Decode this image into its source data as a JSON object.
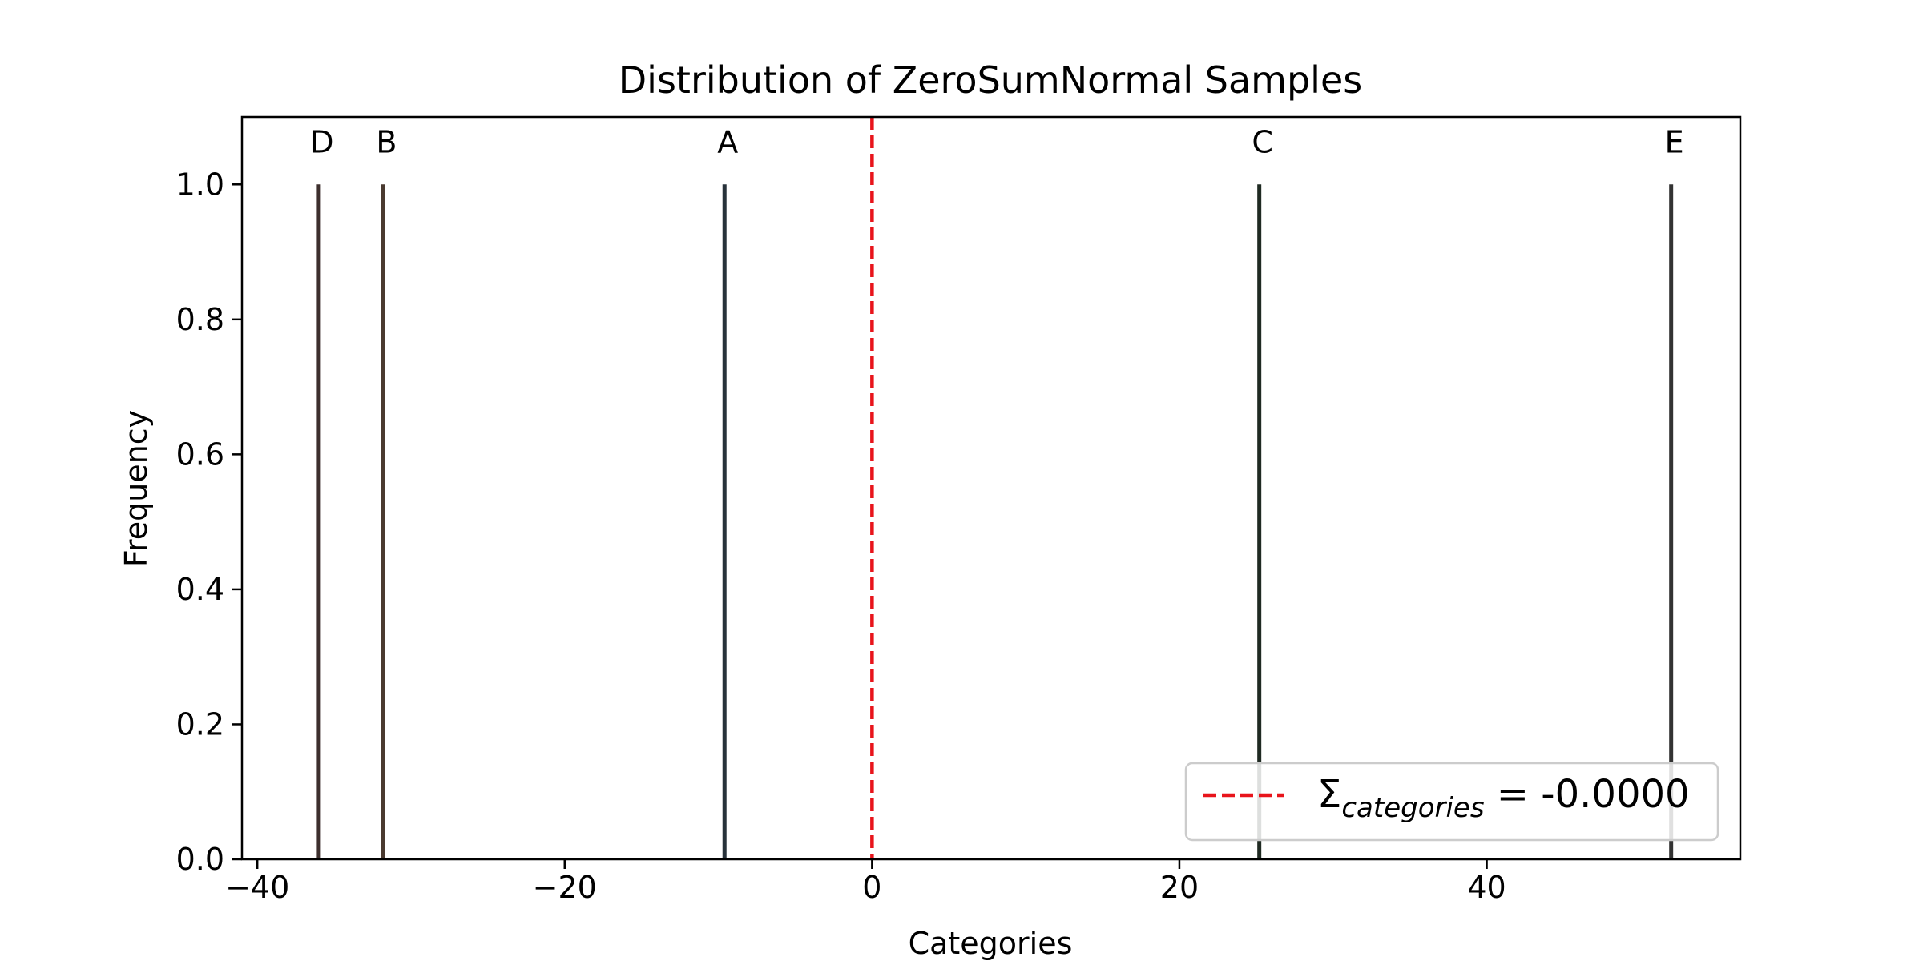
{
  "chart_data": {
    "type": "bar",
    "title": "Distribution of ZeroSumNormal Samples",
    "xlabel": "Categories",
    "ylabel": "Frequency",
    "xlim": [
      -41,
      56.5
    ],
    "ylim": [
      0,
      1.1
    ],
    "x_ticks": [
      -40,
      -20,
      0,
      20,
      40
    ],
    "x_tick_labels": [
      "−40",
      "−20",
      "0",
      "20",
      "40"
    ],
    "y_ticks": [
      0.0,
      0.2,
      0.4,
      0.6,
      0.8,
      1.0
    ],
    "y_tick_labels": [
      "0.0",
      "0.2",
      "0.4",
      "0.6",
      "0.8",
      "1.0"
    ],
    "bars": [
      {
        "label": "D",
        "x": -36.0,
        "value": 1.0,
        "color": "#3d2f2d"
      },
      {
        "label": "B",
        "x": -31.8,
        "value": 1.0,
        "color": "#4a3a30"
      },
      {
        "label": "A",
        "x": -9.6,
        "value": 1.0,
        "color": "#27323a"
      },
      {
        "label": "C",
        "x": 25.2,
        "value": 1.0,
        "color": "#1f2a22"
      },
      {
        "label": "E",
        "x": 52.0,
        "value": 1.0,
        "color": "#333333"
      }
    ],
    "sum_line": {
      "x": 0,
      "color": "#e8141b",
      "style": "dashed"
    },
    "legend": {
      "position": "lower right",
      "symbol": "Σ",
      "subscript": "categories",
      "value_text": " = -0.0000"
    },
    "grid": false
  }
}
